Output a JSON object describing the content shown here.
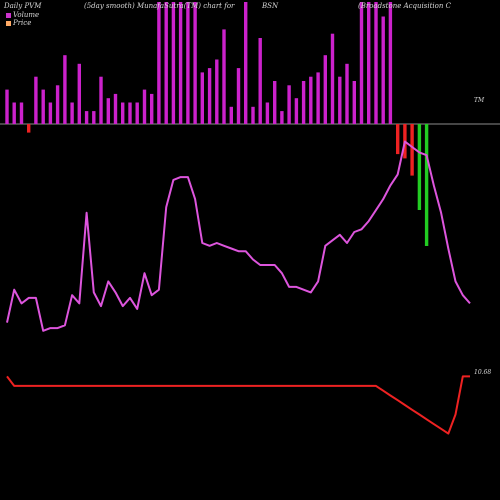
{
  "header": {
    "left": "Daily PVM",
    "smooth": "(5day smooth) MunafaSutra(TM) chart for",
    "symbol": "BSN",
    "company": "(Broadstone Acquisition C"
  },
  "legend": {
    "volume_label": "Volume",
    "price_label": "Price",
    "volume_color": "#cc33cc",
    "price_color": "#ffaa66"
  },
  "tags": {
    "tm": "TM",
    "price": "10.68"
  },
  "colors": {
    "background": "#000000",
    "up_bar": "#cc22cc",
    "down_bar": "#ee2222",
    "big_down_bar": "#22cc22",
    "volume_line": "#dd55dd",
    "price_line": "#ee2222",
    "axis": "#bbbbbb"
  },
  "chart_data": {
    "type": "bar",
    "x": [
      1,
      2,
      3,
      4,
      5,
      6,
      7,
      8,
      9,
      10,
      11,
      12,
      13,
      14,
      15,
      16,
      17,
      18,
      19,
      20,
      21,
      22,
      23,
      24,
      25,
      26,
      27,
      28,
      29,
      30,
      31,
      32,
      33,
      34,
      35,
      36,
      37,
      38,
      39,
      40,
      41,
      42,
      43,
      44,
      45,
      46,
      47,
      48,
      49,
      50,
      51,
      52,
      53,
      54,
      55,
      56,
      57,
      58,
      59,
      60,
      61,
      62,
      63,
      64,
      65
    ],
    "series": [
      {
        "name": "Volume",
        "values": [
          8,
          5,
          5,
          3,
          11,
          8,
          5,
          9,
          16,
          5,
          14,
          3,
          3,
          11,
          6,
          7,
          5,
          5,
          5,
          8,
          7,
          60,
          60,
          60,
          52,
          60,
          40,
          12,
          13,
          15,
          22,
          4,
          13,
          40,
          4,
          20,
          5,
          10,
          3,
          9,
          6,
          10,
          11,
          12,
          16,
          21,
          11,
          14,
          10,
          32,
          45,
          55,
          25,
          35,
          20,
          22,
          0,
          5,
          10,
          32,
          65,
          28,
          27,
          5,
          5
        ],
        "signed": [
          8,
          5,
          5,
          -2,
          11,
          8,
          5,
          9,
          16,
          5,
          14,
          3,
          3,
          11,
          6,
          7,
          5,
          5,
          5,
          8,
          7,
          60,
          60,
          60,
          52,
          60,
          40,
          12,
          13,
          15,
          22,
          4,
          13,
          40,
          4,
          20,
          5,
          10,
          3,
          9,
          6,
          10,
          11,
          12,
          16,
          21,
          11,
          14,
          10,
          32,
          45,
          55,
          25,
          35,
          -7,
          -8,
          -12,
          -20,
          -50,
          0,
          0,
          0,
          0,
          0,
          0
        ]
      },
      {
        "name": "Price",
        "values": [
          10.68,
          10.66,
          10.66,
          10.66,
          10.66,
          10.66,
          10.66,
          10.66,
          10.66,
          10.66,
          10.66,
          10.66,
          10.66,
          10.66,
          10.66,
          10.66,
          10.66,
          10.66,
          10.66,
          10.66,
          10.66,
          10.66,
          10.66,
          10.66,
          10.66,
          10.66,
          10.66,
          10.66,
          10.66,
          10.66,
          10.66,
          10.66,
          10.66,
          10.66,
          10.66,
          10.66,
          10.66,
          10.66,
          10.66,
          10.66,
          10.66,
          10.66,
          10.66,
          10.66,
          10.66,
          10.66,
          10.66,
          10.66,
          10.66,
          10.66,
          10.66,
          10.66,
          10.65,
          10.64,
          10.63,
          10.62,
          10.61,
          10.6,
          10.59,
          10.58,
          10.57,
          10.56,
          10.6,
          10.68,
          10.68
        ]
      }
    ],
    "volume_smooth": [
      18,
      30,
      25,
      27,
      27,
      15,
      16,
      16,
      17,
      28,
      25,
      58,
      29,
      24,
      33,
      29,
      24,
      27,
      23,
      36,
      28,
      30,
      60,
      70,
      71,
      71,
      63,
      47,
      46,
      47,
      46,
      45,
      44,
      44,
      41,
      39,
      39,
      39,
      36,
      31,
      31,
      30,
      29,
      33,
      46,
      48,
      50,
      47,
      51,
      52,
      55,
      59,
      63,
      68,
      72,
      84,
      82,
      80,
      79,
      68,
      58,
      45,
      33,
      28,
      25
    ],
    "xlabel": "",
    "ylabel": ""
  }
}
